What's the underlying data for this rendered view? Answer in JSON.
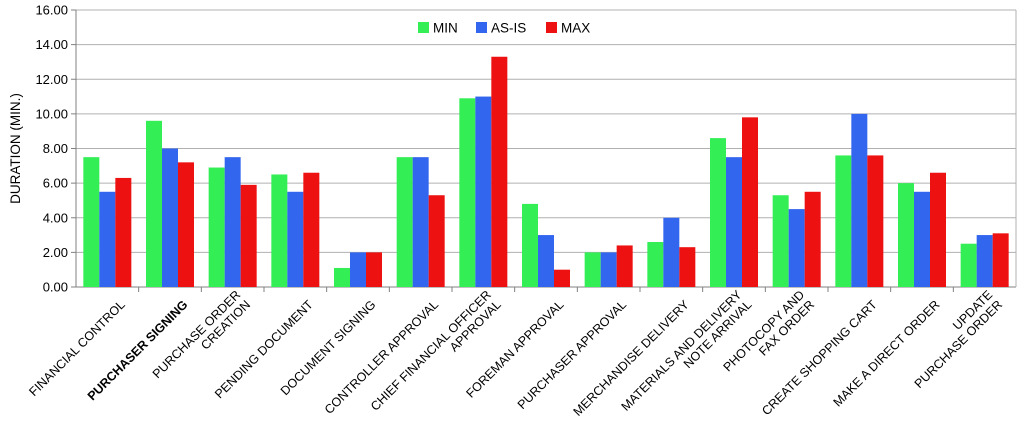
{
  "chart_data": {
    "type": "bar",
    "title": "",
    "xlabel": "",
    "ylabel": "DURATION (MIN.)",
    "ylim": [
      0,
      16
    ],
    "ytick_step": 2,
    "ytick_labels": [
      "0.00",
      "2.00",
      "4.00",
      "6.00",
      "8.00",
      "10.00",
      "12.00",
      "14.00",
      "16.00"
    ],
    "grid": true,
    "legend_position": "top-center",
    "categories": [
      [
        "FINANCIAL CONTROL"
      ],
      [
        "PURCHASER SIGNING"
      ],
      [
        "PURCHASE ORDER",
        "CREATION"
      ],
      [
        "PENDING DOCUMENT"
      ],
      [
        "DOCUMENT SIGNING"
      ],
      [
        "CONTROLLER APPROVAL"
      ],
      [
        "CHIEF FINANCIAL OFFICER",
        "APPROVAL"
      ],
      [
        "FOREMAN APPROVAL"
      ],
      [
        "PURCHASER APPROVAL"
      ],
      [
        "MERCHANDISE DELIVERY"
      ],
      [
        "MATERIALS AND DELIVERY",
        "NOTE ARRIVAL"
      ],
      [
        "PHOTOCOPY AND",
        "FAX ORDER"
      ],
      [
        "CREATE SHOPPING CART"
      ],
      [
        "MAKE A DIRECT ORDER"
      ],
      [
        "UPDATE",
        "PURCHASE ORDER"
      ]
    ],
    "series": [
      {
        "name": "MIN",
        "color": "#33ee55",
        "values": [
          7.5,
          9.6,
          6.9,
          6.5,
          1.1,
          7.5,
          10.9,
          4.8,
          2.0,
          2.6,
          8.6,
          5.3,
          7.6,
          6.0,
          2.5
        ]
      },
      {
        "name": "AS-IS",
        "color": "#3366ee",
        "values": [
          5.5,
          8.0,
          7.5,
          5.5,
          2.0,
          7.5,
          11.0,
          3.0,
          2.0,
          4.0,
          7.5,
          4.5,
          10.0,
          5.5,
          3.0
        ]
      },
      {
        "name": "MAX",
        "color": "#ee1111",
        "values": [
          6.3,
          7.2,
          5.9,
          6.6,
          2.0,
          5.3,
          13.3,
          1.0,
          2.4,
          2.3,
          9.8,
          5.5,
          7.6,
          6.6,
          3.1
        ]
      }
    ]
  }
}
